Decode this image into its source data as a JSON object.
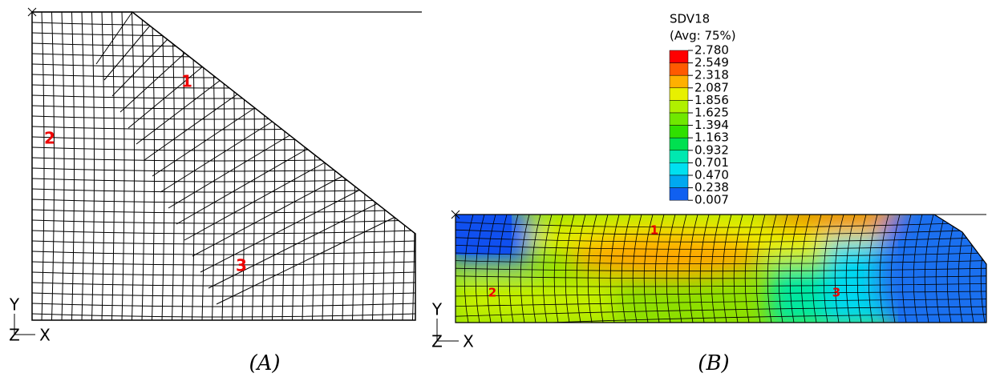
{
  "panel_a": {
    "labels": [
      "1",
      "2",
      "3"
    ],
    "axes": {
      "y": "Y",
      "z": "Z",
      "x": "X"
    },
    "caption": "(A)"
  },
  "panel_b": {
    "legend": {
      "title": "SDV18",
      "subtitle": "(Avg: 75%)",
      "levels": [
        "2.780",
        "2.549",
        "2.318",
        "2.087",
        "1.856",
        "1.625",
        "1.394",
        "1.163",
        "0.932",
        "0.701",
        "0.470",
        "0.238",
        "0.007"
      ]
    },
    "labels": [
      "1",
      "2",
      "3"
    ],
    "axes": {
      "y": "Y",
      "z": "Z",
      "x": "X"
    },
    "caption": "(B)"
  }
}
